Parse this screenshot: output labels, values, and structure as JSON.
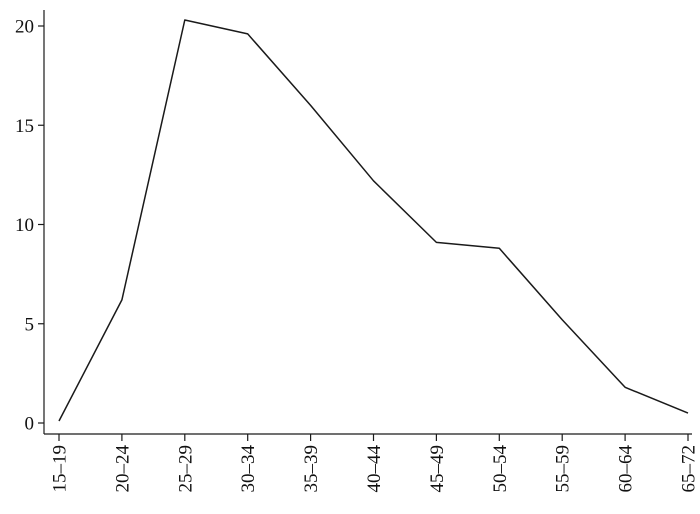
{
  "chart_data": {
    "type": "line",
    "title": "",
    "xlabel": "",
    "ylabel": "",
    "categories": [
      "15–19",
      "20–24",
      "25–29",
      "30–34",
      "35–39",
      "40–44",
      "45–49",
      "50–54",
      "55–59",
      "60–64",
      "65–72"
    ],
    "series": [
      {
        "values": [
          0.1,
          6.2,
          20.3,
          19.6,
          16.0,
          12.2,
          9.1,
          8.8,
          5.2,
          1.8,
          0.5
        ]
      }
    ],
    "ylim": [
      0,
      20.5
    ],
    "yticks": [
      0,
      5,
      10,
      15,
      20
    ],
    "grid": false,
    "legend": "none",
    "line_color": "#1a1a1a"
  }
}
